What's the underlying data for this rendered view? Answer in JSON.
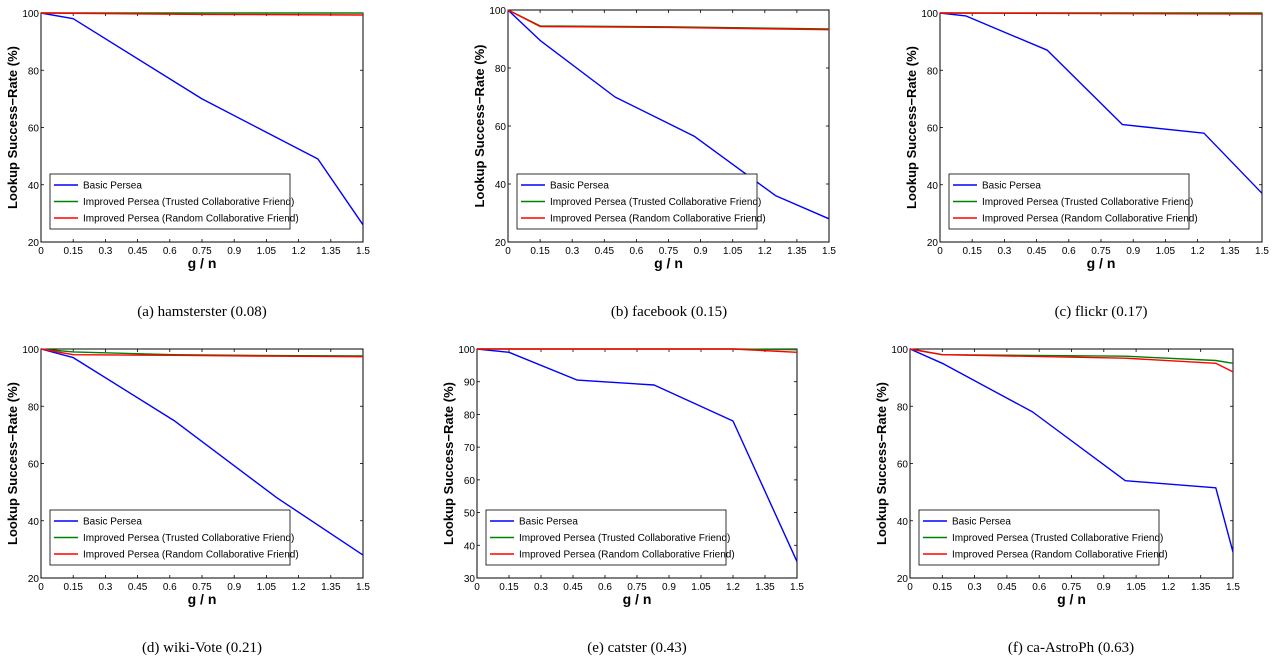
{
  "chart_data": [
    {
      "type": "line",
      "caption": "(a) hamsterster (0.08)",
      "xlabel": "g / n",
      "ylabel": "Lookup Success−Rate (%)",
      "xlim": [
        0,
        1.5
      ],
      "ylim": [
        20,
        100
      ],
      "xticks": [
        "0",
        "0.15",
        "0.3",
        "0.45",
        "0.6",
        "0.75",
        "0.9",
        "1.05",
        "1.2",
        "1.35",
        "1.5"
      ],
      "yticks": [
        "20",
        "40",
        "60",
        "80",
        "100"
      ],
      "legend_position": "lower-left",
      "series": [
        {
          "name": "Basic Persea",
          "color": "#0000ff",
          "x": [
            0,
            0.15,
            0.75,
            1.29,
            1.5
          ],
          "y": [
            100,
            98,
            70,
            49,
            26
          ]
        },
        {
          "name": "Improved Persea (Trusted Collaborative Friend)",
          "color": "#008000",
          "x": [
            0,
            1.5
          ],
          "y": [
            100,
            100
          ]
        },
        {
          "name": "Improved Persea (Random Collaborative Friend)",
          "color": "#ff0000",
          "x": [
            0,
            0.75,
            1.5
          ],
          "y": [
            100,
            99.5,
            99.3
          ]
        }
      ]
    },
    {
      "type": "line",
      "caption": "(b) facebook (0.15)",
      "xlabel": "g / n",
      "ylabel": "Lookup Success−Rate (%)",
      "xlim": [
        0,
        1.5
      ],
      "ylim": [
        20,
        100
      ],
      "xticks": [
        "0",
        "0.15",
        "0.3",
        "0.45",
        "0.6",
        "0.75",
        "0.9",
        "1.05",
        "1.2",
        "1.35",
        "1.5"
      ],
      "yticks": [
        "20",
        "40",
        "60",
        "80",
        "100"
      ],
      "legend_position": "lower-left",
      "series": [
        {
          "name": "Basic Persea",
          "color": "#0000ff",
          "x": [
            0,
            0.15,
            0.5,
            0.87,
            1.25,
            1.5
          ],
          "y": [
            100,
            89.5,
            70,
            56.5,
            36,
            28
          ]
        },
        {
          "name": "Improved Persea (Trusted Collaborative Friend)",
          "color": "#008000",
          "x": [
            0,
            0.15,
            0.75,
            1.5
          ],
          "y": [
            100,
            94.5,
            94.2,
            93.5
          ]
        },
        {
          "name": "Improved Persea (Random Collaborative Friend)",
          "color": "#ff0000",
          "x": [
            0,
            0.15,
            0.75,
            1.5
          ],
          "y": [
            100,
            94.3,
            94,
            93.2
          ]
        }
      ]
    },
    {
      "type": "line",
      "caption": "(c) flickr (0.17)",
      "xlabel": "g / n",
      "ylabel": "Lookup Success−Rate (%)",
      "xlim": [
        0,
        1.5
      ],
      "ylim": [
        20,
        100
      ],
      "xticks": [
        "0",
        "0.15",
        "0.3",
        "0.45",
        "0.6",
        "0.75",
        "0.9",
        "1.05",
        "1.2",
        "1.35",
        "1.5"
      ],
      "yticks": [
        "20",
        "40",
        "60",
        "80",
        "100"
      ],
      "legend_position": "lower-left",
      "series": [
        {
          "name": "Basic Persea",
          "color": "#0000ff",
          "x": [
            0,
            0.12,
            0.5,
            0.85,
            1.23,
            1.5
          ],
          "y": [
            100,
            99,
            87,
            61,
            58,
            37
          ]
        },
        {
          "name": "Improved Persea (Trusted Collaborative Friend)",
          "color": "#008000",
          "x": [
            0,
            1.5
          ],
          "y": [
            100,
            100
          ]
        },
        {
          "name": "Improved Persea (Random Collaborative Friend)",
          "color": "#ff0000",
          "x": [
            0,
            1.5
          ],
          "y": [
            100,
            99.6
          ]
        }
      ]
    },
    {
      "type": "line",
      "caption": "(d) wiki-Vote (0.21)",
      "xlabel": "g / n",
      "ylabel": "Lookup Success−Rate (%)",
      "xlim": [
        0,
        1.5
      ],
      "ylim": [
        20,
        100
      ],
      "xticks": [
        "0",
        "0.15",
        "0.3",
        "0.45",
        "0.6",
        "0.75",
        "0.9",
        "1.05",
        "1.2",
        "1.35",
        "1.5"
      ],
      "yticks": [
        "20",
        "40",
        "60",
        "80",
        "100"
      ],
      "legend_position": "lower-left",
      "series": [
        {
          "name": "Basic Persea",
          "color": "#0000ff",
          "x": [
            0,
            0.15,
            0.62,
            1.1,
            1.5
          ],
          "y": [
            100,
            97,
            75,
            48,
            28
          ]
        },
        {
          "name": "Improved Persea (Trusted Collaborative Friend)",
          "color": "#008000",
          "x": [
            0,
            0.15,
            0.62,
            1.1,
            1.5
          ],
          "y": [
            100,
            99,
            98,
            97.7,
            97.6
          ]
        },
        {
          "name": "Improved Persea (Random Collaborative Friend)",
          "color": "#ff0000",
          "x": [
            0,
            0.15,
            0.62,
            1.1,
            1.5
          ],
          "y": [
            100,
            98,
            97.8,
            97.5,
            97.3
          ]
        }
      ]
    },
    {
      "type": "line",
      "caption": "(e) catster (0.43)",
      "xlabel": "g / n",
      "ylabel": "Lookup Success−Rate (%)",
      "xlim": [
        0,
        1.5
      ],
      "ylim": [
        30,
        100
      ],
      "xticks": [
        "0",
        "0.15",
        "0.3",
        "0.45",
        "0.6",
        "0.75",
        "0.9",
        "1.05",
        "1.2",
        "1.35",
        "1.5"
      ],
      "yticks": [
        "30",
        "40",
        "50",
        "60",
        "70",
        "80",
        "90",
        "100"
      ],
      "legend_position": "lower-left",
      "series": [
        {
          "name": "Basic Persea",
          "color": "#0000ff",
          "x": [
            0,
            0.15,
            0.47,
            0.83,
            1.2,
            1.5
          ],
          "y": [
            100,
            99,
            90.5,
            89,
            78,
            35
          ]
        },
        {
          "name": "Improved Persea (Trusted Collaborative Friend)",
          "color": "#008000",
          "x": [
            0,
            1.2,
            1.5
          ],
          "y": [
            100,
            100,
            99.8
          ]
        },
        {
          "name": "Improved Persea (Random Collaborative Friend)",
          "color": "#ff0000",
          "x": [
            0,
            1.2,
            1.5
          ],
          "y": [
            100,
            100,
            99
          ]
        }
      ]
    },
    {
      "type": "line",
      "caption": "(f) ca-AstroPh (0.63)",
      "xlabel": "g / n",
      "ylabel": "Lookup Success−Rate (%)",
      "xlim": [
        0,
        1.5
      ],
      "ylim": [
        20,
        100
      ],
      "xticks": [
        "0",
        "0.15",
        "0.3",
        "0.45",
        "0.6",
        "0.75",
        "0.9",
        "1.05",
        "1.2",
        "1.35",
        "1.5"
      ],
      "yticks": [
        "20",
        "40",
        "60",
        "80",
        "100"
      ],
      "legend_position": "lower-left",
      "series": [
        {
          "name": "Basic Persea",
          "color": "#0000ff",
          "x": [
            0,
            0.15,
            0.57,
            1.0,
            1.42,
            1.5
          ],
          "y": [
            100,
            95,
            78,
            54,
            51.5,
            29
          ]
        },
        {
          "name": "Improved Persea (Trusted Collaborative Friend)",
          "color": "#008000",
          "x": [
            0,
            0.15,
            1.0,
            1.42,
            1.5
          ],
          "y": [
            100,
            98,
            97.5,
            96,
            95
          ]
        },
        {
          "name": "Improved Persea (Random Collaborative Friend)",
          "color": "#ff0000",
          "x": [
            0,
            0.15,
            1.0,
            1.42,
            1.5
          ],
          "y": [
            100,
            98,
            96.8,
            95,
            92
          ]
        }
      ]
    }
  ]
}
